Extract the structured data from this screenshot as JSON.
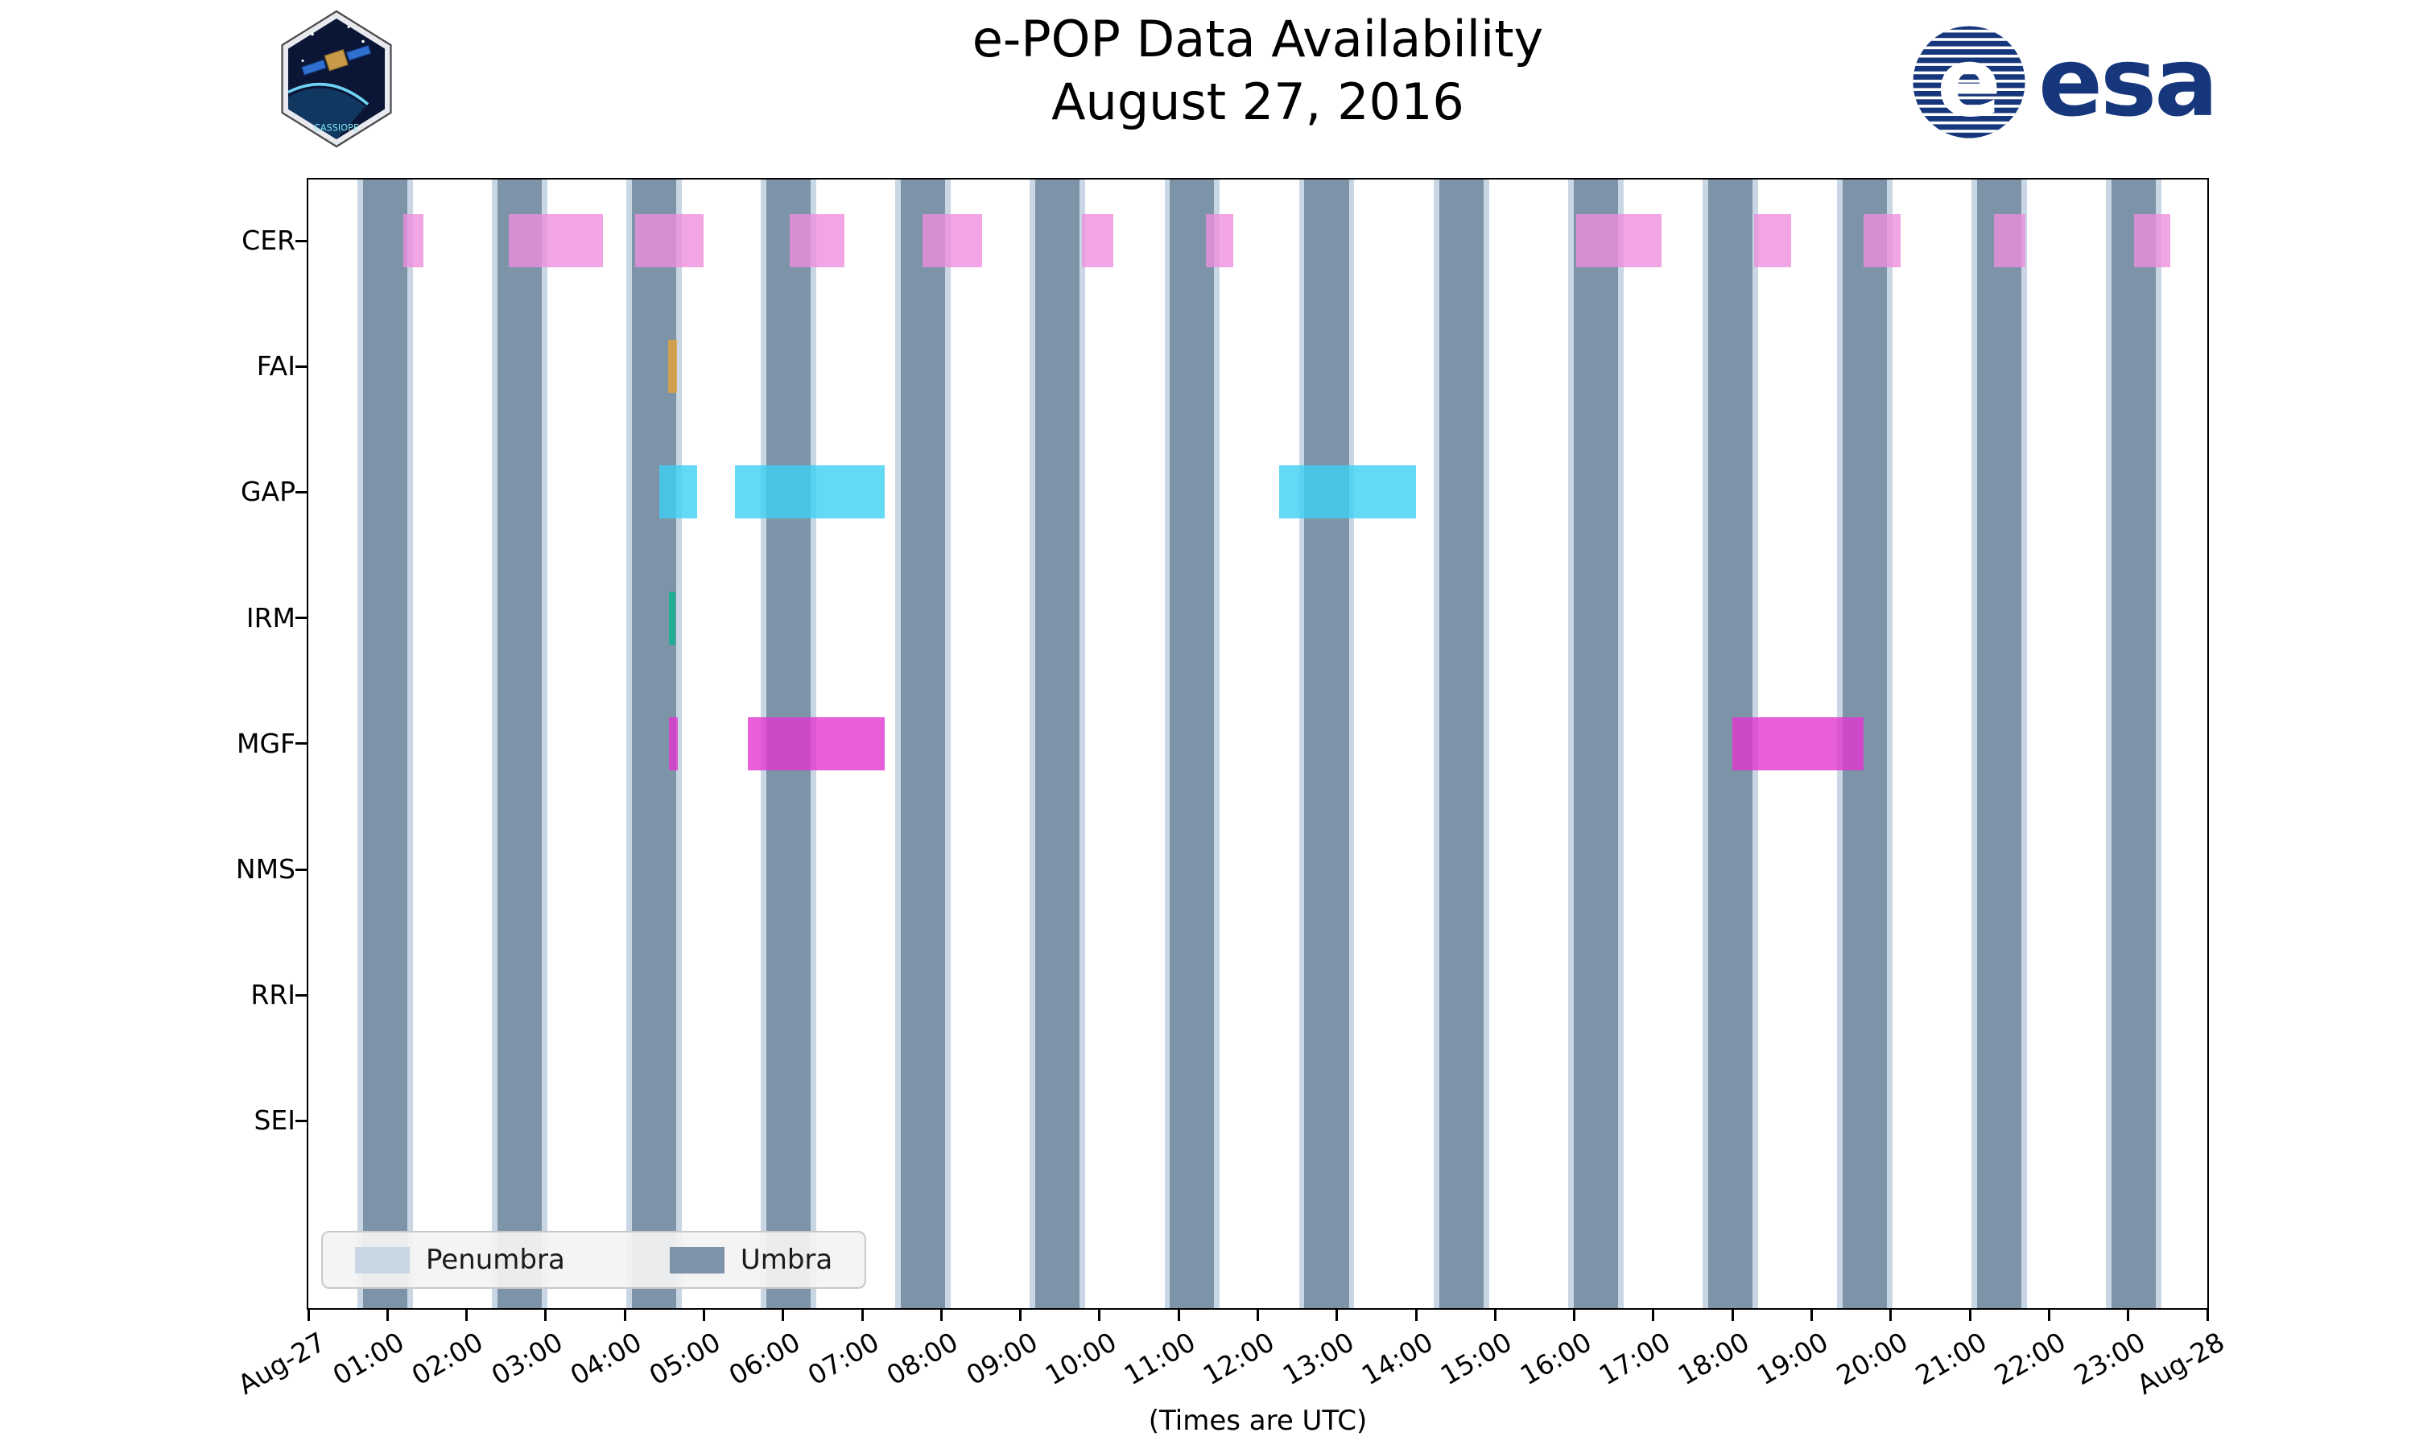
{
  "logos": {
    "esa_text": "esa",
    "cassiope_text": "CASSIOPE"
  },
  "chart_data": {
    "type": "timeline",
    "title": "e-POP Data Availability",
    "subtitle": "August 27, 2016",
    "xlabel": "(Times are UTC)",
    "x_range_hours": [
      0,
      24
    ],
    "x_tick_labels": [
      "Aug-27",
      "01:00",
      "02:00",
      "03:00",
      "04:00",
      "05:00",
      "06:00",
      "07:00",
      "08:00",
      "09:00",
      "10:00",
      "11:00",
      "12:00",
      "13:00",
      "14:00",
      "15:00",
      "16:00",
      "17:00",
      "18:00",
      "19:00",
      "20:00",
      "21:00",
      "22:00",
      "23:00",
      "Aug-28"
    ],
    "bar_alpha": 0.8,
    "rows": [
      {
        "name": "CER",
        "color": "#ee8fdf",
        "intervals": [
          [
            1.2,
            1.45
          ],
          [
            2.53,
            3.72
          ],
          [
            4.13,
            5.0
          ],
          [
            6.08,
            6.78
          ],
          [
            7.76,
            8.52
          ],
          [
            9.78,
            10.17
          ],
          [
            11.34,
            11.69
          ],
          [
            16.02,
            17.1
          ],
          [
            18.27,
            18.74
          ],
          [
            19.66,
            20.12
          ],
          [
            21.3,
            21.7
          ],
          [
            23.07,
            23.53
          ]
        ]
      },
      {
        "name": "FAI",
        "color": "#e4a238",
        "intervals": [
          [
            4.55,
            4.66
          ]
        ]
      },
      {
        "name": "GAP",
        "color": "#3dd0f3",
        "intervals": [
          [
            4.44,
            4.91
          ],
          [
            5.39,
            7.28
          ],
          [
            12.27,
            14.0
          ]
        ]
      },
      {
        "name": "IRM",
        "color": "#0bb490",
        "intervals": [
          [
            4.56,
            4.64
          ]
        ]
      },
      {
        "name": "MGF",
        "color": "#e237d0",
        "intervals": [
          [
            4.56,
            4.67
          ],
          [
            5.55,
            7.28
          ],
          [
            18.0,
            19.66
          ]
        ]
      },
      {
        "name": "NMS",
        "color": "#888888",
        "intervals": []
      },
      {
        "name": "RRI",
        "color": "#888888",
        "intervals": []
      },
      {
        "name": "SEI",
        "color": "#888888",
        "intervals": []
      }
    ],
    "shadow": {
      "umbra": {
        "color": "#7d93a8",
        "intervals": [
          [
            0.69,
            1.25
          ],
          [
            2.39,
            2.95
          ],
          [
            4.09,
            4.65
          ],
          [
            5.79,
            6.35
          ],
          [
            7.49,
            8.05
          ],
          [
            9.19,
            9.75
          ],
          [
            10.89,
            11.45
          ],
          [
            12.59,
            13.15
          ],
          [
            14.29,
            14.85
          ],
          [
            15.99,
            16.55
          ],
          [
            17.69,
            18.25
          ],
          [
            19.39,
            19.95
          ],
          [
            21.09,
            21.65
          ],
          [
            22.79,
            23.35
          ]
        ]
      },
      "penumbra": {
        "color": "#c9d7e4",
        "pad_hours": 0.07
      }
    },
    "legend": [
      {
        "label": "Penumbra",
        "color": "#c9d7e4"
      },
      {
        "label": "Umbra",
        "color": "#7d93a8"
      }
    ]
  }
}
